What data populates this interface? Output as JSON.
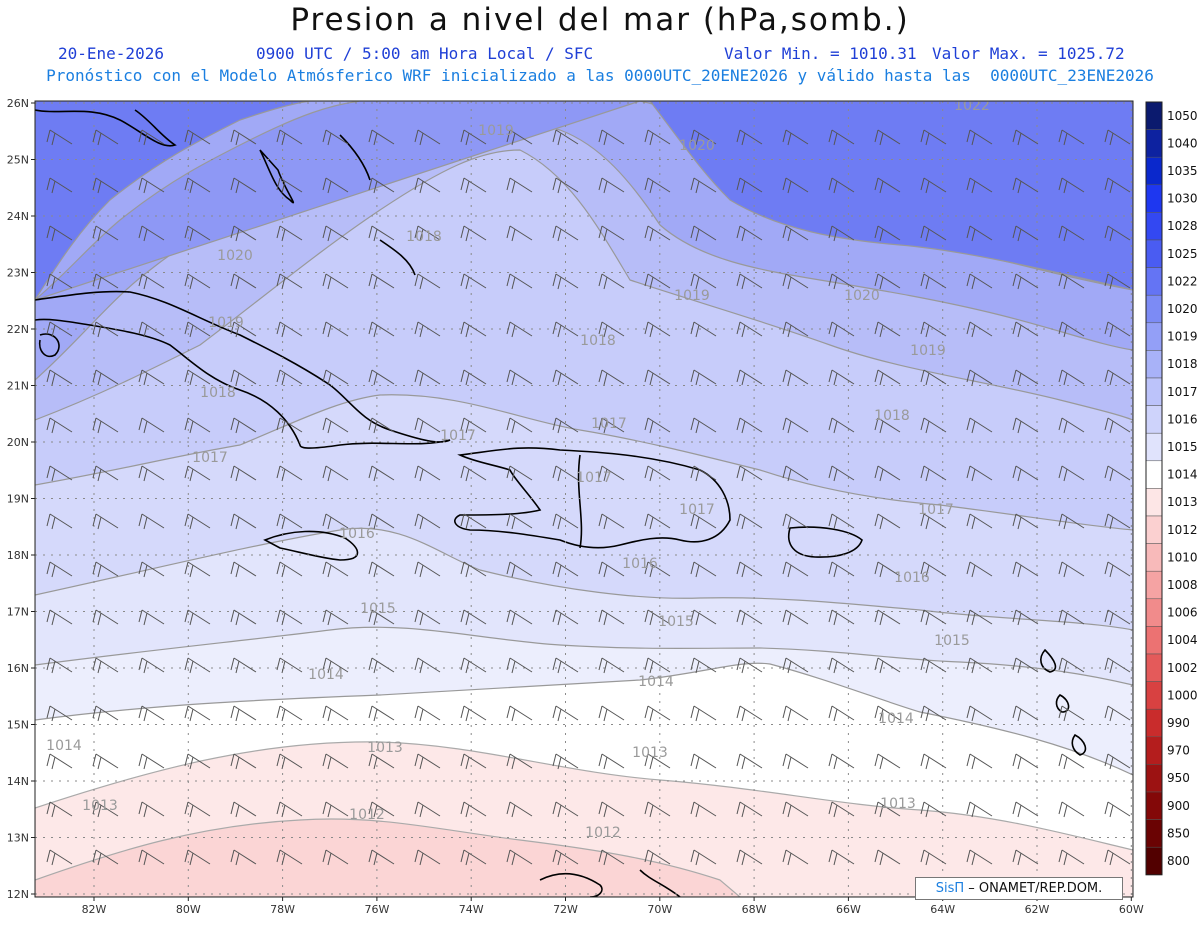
{
  "header": {
    "title": "Presion a nivel del mar (hPa,somb.)",
    "date": "20-Ene-2026",
    "time": "0900 UTC / 5:00 am Hora Local / SFC",
    "min": "Valor Min. = 1010.31",
    "max": "Valor Max. = 1025.72",
    "model_line": "Pronóstico con el Modelo Atmósferico WRF inicializado a las 0000UTC_20ENE2026 y válido hasta las  0000UTC_23ENE2026"
  },
  "axes": {
    "lat_labels": [
      "26N",
      "25N",
      "24N",
      "23N",
      "22N",
      "21N",
      "20N",
      "19N",
      "18N",
      "17N",
      "16N",
      "15N",
      "14N",
      "13N",
      "12N"
    ],
    "lon_labels": [
      "82W",
      "80W",
      "78W",
      "76W",
      "74W",
      "72W",
      "70W",
      "68W",
      "66W",
      "64W",
      "62W",
      "60W"
    ]
  },
  "colorbar": {
    "levels": [
      "1050",
      "1040",
      "1035",
      "1030",
      "1028",
      "1025",
      "1022",
      "1020",
      "1019",
      "1018",
      "1017",
      "1016",
      "1015",
      "1014",
      "1013",
      "1012",
      "1010",
      "1008",
      "1006",
      "1004",
      "1002",
      "1000",
      "990",
      "970",
      "950",
      "900",
      "850",
      "800"
    ],
    "colors": [
      "#0b1a6e",
      "#0d22a0",
      "#0a28cc",
      "#1e37f0",
      "#3348f2",
      "#4a5cf2",
      "#6474f4",
      "#7c8bf5",
      "#939ff7",
      "#a8b2f8",
      "#bcc3fa",
      "#ced3fb",
      "#e0e3fc",
      "#ffffff",
      "#fde6e6",
      "#fbd0d0",
      "#f8baba",
      "#f5a3a3",
      "#f18b8b",
      "#ec7272",
      "#e45a5a",
      "#d84141",
      "#c92c2c",
      "#b41d1d",
      "#9c1212",
      "#830808",
      "#6a0303",
      "#520000"
    ]
  },
  "contour_labels": [
    {
      "text": "1022"
    },
    {
      "text": "1019"
    },
    {
      "text": "1020"
    },
    {
      "text": "1018"
    },
    {
      "text": "1020"
    },
    {
      "text": "1019"
    },
    {
      "text": "1018"
    },
    {
      "text": "1020"
    },
    {
      "text": "1019"
    },
    {
      "text": "1018"
    },
    {
      "text": "1019"
    },
    {
      "text": "1018"
    },
    {
      "text": "1017"
    },
    {
      "text": "1017"
    },
    {
      "text": "1017"
    },
    {
      "text": "1017"
    },
    {
      "text": "1017"
    },
    {
      "text": "1016"
    },
    {
      "text": "1016"
    },
    {
      "text": "1016"
    },
    {
      "text": "1015"
    },
    {
      "text": "1015"
    },
    {
      "text": "1015"
    },
    {
      "text": "1014"
    },
    {
      "text": "1014"
    },
    {
      "text": "1014"
    },
    {
      "text": "1014"
    },
    {
      "text": "1013"
    },
    {
      "text": "1013"
    },
    {
      "text": "1013"
    },
    {
      "text": "1013"
    },
    {
      "text": "1012"
    },
    {
      "text": "1012"
    },
    {
      "text": "1017"
    }
  ],
  "credit": {
    "brand": "SisΠ",
    "text": "– ONAMET/REP.DOM."
  }
}
